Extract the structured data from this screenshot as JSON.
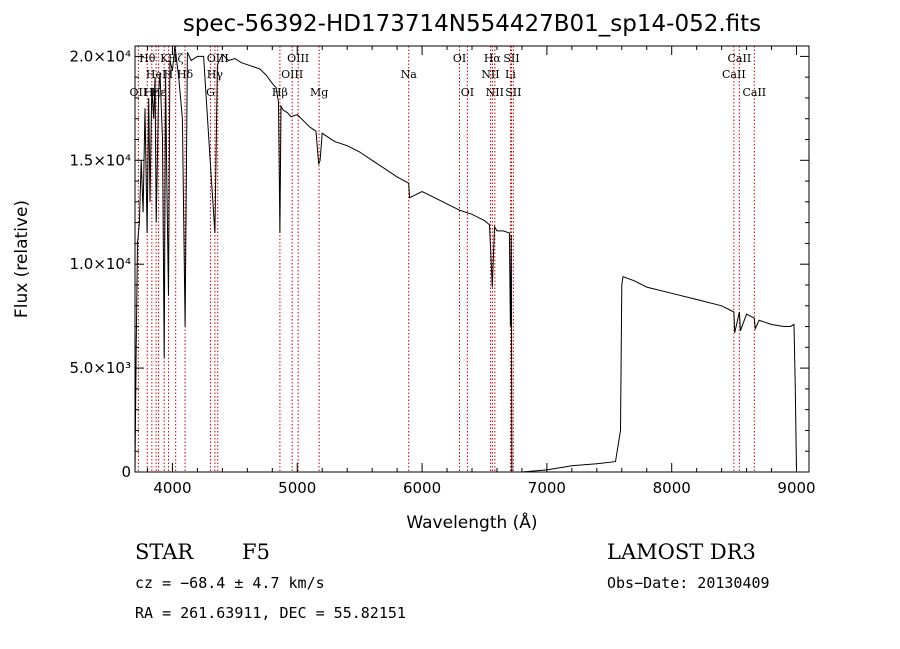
{
  "chart_data": {
    "type": "line",
    "title": "spec-56392-HD173714N554427B01_sp14-052.fits",
    "xlabel": "Wavelength (Å)",
    "ylabel": "Flux (relative)",
    "xlim": [
      3700,
      9100
    ],
    "ylim": [
      0,
      20500
    ],
    "x_ticks": [
      {
        "value": 4000,
        "label": "4000"
      },
      {
        "value": 5000,
        "label": "5000"
      },
      {
        "value": 6000,
        "label": "6000"
      },
      {
        "value": 7000,
        "label": "7000"
      },
      {
        "value": 8000,
        "label": "8000"
      },
      {
        "value": 9000,
        "label": "9000"
      }
    ],
    "y_ticks": [
      {
        "value": 0,
        "label": "0"
      },
      {
        "value": 5000,
        "label": "5.0×10³"
      },
      {
        "value": 10000,
        "label": "1.0×10⁴"
      },
      {
        "value": 15000,
        "label": "1.5×10⁴"
      },
      {
        "value": 20000,
        "label": "2.0×10⁴"
      }
    ],
    "series": [
      {
        "name": "spectrum",
        "x": [
          3700,
          3710,
          3720,
          3735,
          3750,
          3765,
          3780,
          3797,
          3810,
          3820,
          3835,
          3850,
          3860,
          3870,
          3889,
          3900,
          3920,
          3934,
          3945,
          3955,
          3968,
          3980,
          4000,
          4020,
          4050,
          4080,
          4101,
          4120,
          4150,
          4200,
          4250,
          4300,
          4340,
          4360,
          4400,
          4450,
          4500,
          4550,
          4600,
          4650,
          4700,
          4750,
          4800,
          4830,
          4850,
          4861,
          4870,
          4890,
          4920,
          4950,
          5000,
          5050,
          5100,
          5150,
          5172,
          5183,
          5200,
          5250,
          5300,
          5400,
          5500,
          5600,
          5700,
          5800,
          5893,
          5900,
          6000,
          6100,
          6200,
          6300,
          6400,
          6500,
          6540,
          6563,
          6580,
          6600,
          6650,
          6700,
          6708,
          6715,
          6720,
          6800,
          7000,
          7200,
          7400,
          7550,
          7590,
          7600,
          7610,
          7700,
          7800,
          8000,
          8200,
          8400,
          8498,
          8505,
          8542,
          8550,
          8600,
          8662,
          8670,
          8700,
          8800,
          8900,
          8950,
          8980,
          8990,
          9000
        ],
        "y": [
          0,
          6000,
          11000,
          12000,
          15000,
          12500,
          17500,
          11500,
          18000,
          13000,
          18500,
          17000,
          19000,
          12000,
          18200,
          19200,
          16000,
          5500,
          19000,
          14000,
          8500,
          19800,
          19300,
          20500,
          19000,
          17000,
          7000,
          20200,
          19800,
          20000,
          20000,
          15200,
          11500,
          19600,
          20100,
          19800,
          19900,
          19700,
          19600,
          19500,
          19400,
          19100,
          18700,
          18500,
          17800,
          11500,
          17600,
          17400,
          17300,
          17100,
          17200,
          16900,
          16600,
          16400,
          14800,
          15000,
          16300,
          16100,
          15900,
          15700,
          15400,
          15000,
          14600,
          14200,
          13900,
          13200,
          13500,
          13200,
          12900,
          12600,
          12400,
          12100,
          11900,
          8900,
          11800,
          11600,
          11600,
          11500,
          7000,
          11400,
          0,
          0,
          100,
          300,
          400,
          500,
          2000,
          9000,
          9400,
          9200,
          8900,
          8600,
          8300,
          8000,
          7700,
          6700,
          7700,
          6800,
          7600,
          7400,
          6900,
          7300,
          7100,
          7000,
          7000,
          7100,
          4000,
          0
        ]
      }
    ],
    "line_markers": [
      {
        "wavelength": 3727,
        "label": "OII",
        "row": 3
      },
      {
        "wavelength": 3798,
        "label": "Hθ",
        "row": 1
      },
      {
        "wavelength": 3835,
        "label": "Hη",
        "row": 3
      },
      {
        "wavelength": 3869,
        "label": "HeI",
        "row": 2
      },
      {
        "wavelength": 3889,
        "label": "Hε",
        "row": 3
      },
      {
        "wavelength": 3934,
        "label": "K",
        "row": 1
      },
      {
        "wavelength": 3968,
        "label": "H",
        "row": 2
      },
      {
        "wavelength": 4026,
        "label": "Hζ",
        "row": 1
      },
      {
        "wavelength": 4101,
        "label": "Hδ",
        "row": 2
      },
      {
        "wavelength": 4305,
        "label": "G",
        "row": 3
      },
      {
        "wavelength": 4340,
        "label": "Hγ",
        "row": 2
      },
      {
        "wavelength": 4363,
        "label": "OIII",
        "row": 1
      },
      {
        "wavelength": 4861,
        "label": "Hβ",
        "row": 3
      },
      {
        "wavelength": 4959,
        "label": "OIII",
        "row": 2
      },
      {
        "wavelength": 5007,
        "label": "OIII",
        "row": 1
      },
      {
        "wavelength": 5175,
        "label": "Mg",
        "row": 3
      },
      {
        "wavelength": 5893,
        "label": "Na",
        "row": 2
      },
      {
        "wavelength": 6300,
        "label": "OI",
        "row": 1
      },
      {
        "wavelength": 6363,
        "label": "OI",
        "row": 3
      },
      {
        "wavelength": 6548,
        "label": "NII",
        "row": 2
      },
      {
        "wavelength": 6563,
        "label": "Hα",
        "row": 1
      },
      {
        "wavelength": 6583,
        "label": "NII",
        "row": 3
      },
      {
        "wavelength": 6708,
        "label": "Li",
        "row": 2
      },
      {
        "wavelength": 6716,
        "label": "SII",
        "row": 1
      },
      {
        "wavelength": 6731,
        "label": "SII",
        "row": 3
      },
      {
        "wavelength": 8498,
        "label": "CaII",
        "row": 2
      },
      {
        "wavelength": 8542,
        "label": "CaII",
        "row": 1
      },
      {
        "wavelength": 8662,
        "label": "CaII",
        "row": 3
      }
    ],
    "marker_color": "#cc0000"
  },
  "info": {
    "object_class": "STAR",
    "subclass": "F5",
    "survey": "LAMOST DR3",
    "cz": "cz = −68.4 ± 4.7 km/s",
    "obs_date": "Obs−Date: 20130409",
    "coords": "RA = 261.63911, DEC =  55.82151"
  }
}
